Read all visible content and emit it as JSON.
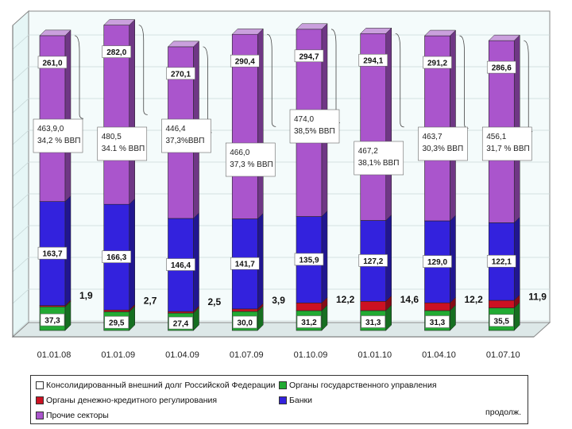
{
  "chart_data": {
    "type": "bar",
    "stacked": true,
    "categories": [
      "01.01.08",
      "01.01.09",
      "01.04.09",
      "01.07.09",
      "01.10.09",
      "01.01.10",
      "01.04.10",
      "01.07.10"
    ],
    "series": [
      {
        "name": "Органы государственного управления",
        "color": "#22aa33",
        "values": [
          37.3,
          29.5,
          27.4,
          30.0,
          31.2,
          31.3,
          31.3,
          35.5
        ],
        "labels": [
          "37,3",
          "29,5",
          "27,4",
          "30,0",
          "31,2",
          "31,3",
          "31,3",
          "35,5"
        ]
      },
      {
        "name": "Органы денежно-кредитного регулирования",
        "color": "#cc1122",
        "values": [
          1.9,
          2.7,
          2.5,
          3.9,
          12.2,
          14.6,
          12.2,
          11.9
        ],
        "labels": [
          "1,9",
          "2,7",
          "2,5",
          "3,9",
          "12,2",
          "14,6",
          "12,2",
          "11,9"
        ]
      },
      {
        "name": "Банки",
        "color": "#3322dd",
        "values": [
          163.7,
          166.3,
          146.4,
          141.7,
          135.9,
          127.2,
          129.0,
          122.1
        ],
        "labels": [
          "163,7",
          "166,3",
          "146,4",
          "141,7",
          "135,9",
          "127,2",
          "129,0",
          "122,1"
        ]
      },
      {
        "name": "Прочие секторы",
        "color": "#aa55cc",
        "values": [
          261.0,
          282.0,
          270.1,
          290.4,
          294.7,
          294.1,
          291.2,
          286.6
        ],
        "labels": [
          "261,0",
          "282,0",
          "270,1",
          "290,4",
          "294,7",
          "294,1",
          "291,2",
          "286,6"
        ]
      }
    ],
    "totals": [
      {
        "value": "463,9,0",
        "pct": "34,2 % ВВП"
      },
      {
        "value": "480,5",
        "pct": "34.1 % ВВП"
      },
      {
        "value": "446,4",
        "pct": "37,3%ВВП"
      },
      {
        "value": "466,0",
        "pct": "37,3 % ВВП"
      },
      {
        "value": "474,0",
        "pct": "38,5% ВВП"
      },
      {
        "value": "467,2",
        "pct": "38,1% ВВП"
      },
      {
        "value": "463,7",
        "pct": "30,3% ВВП"
      },
      {
        "value": "456,1",
        "pct": "31,7 % ВВП"
      }
    ],
    "ylim": [
      0,
      480
    ],
    "grid": true,
    "legend_position": "bottom"
  },
  "legend": {
    "items": [
      {
        "label": "Консолидированный внешний долг Российской Федерации",
        "color": "#ffffff"
      },
      {
        "label": "Органы государственного управления",
        "color": "#22aa33"
      },
      {
        "label": "Органы денежно-кредитного регулирования",
        "color": "#cc1122"
      },
      {
        "label": "Банки",
        "color": "#3322dd"
      },
      {
        "label": "Прочие секторы",
        "color": "#aa55cc"
      }
    ],
    "note": "продолж."
  }
}
